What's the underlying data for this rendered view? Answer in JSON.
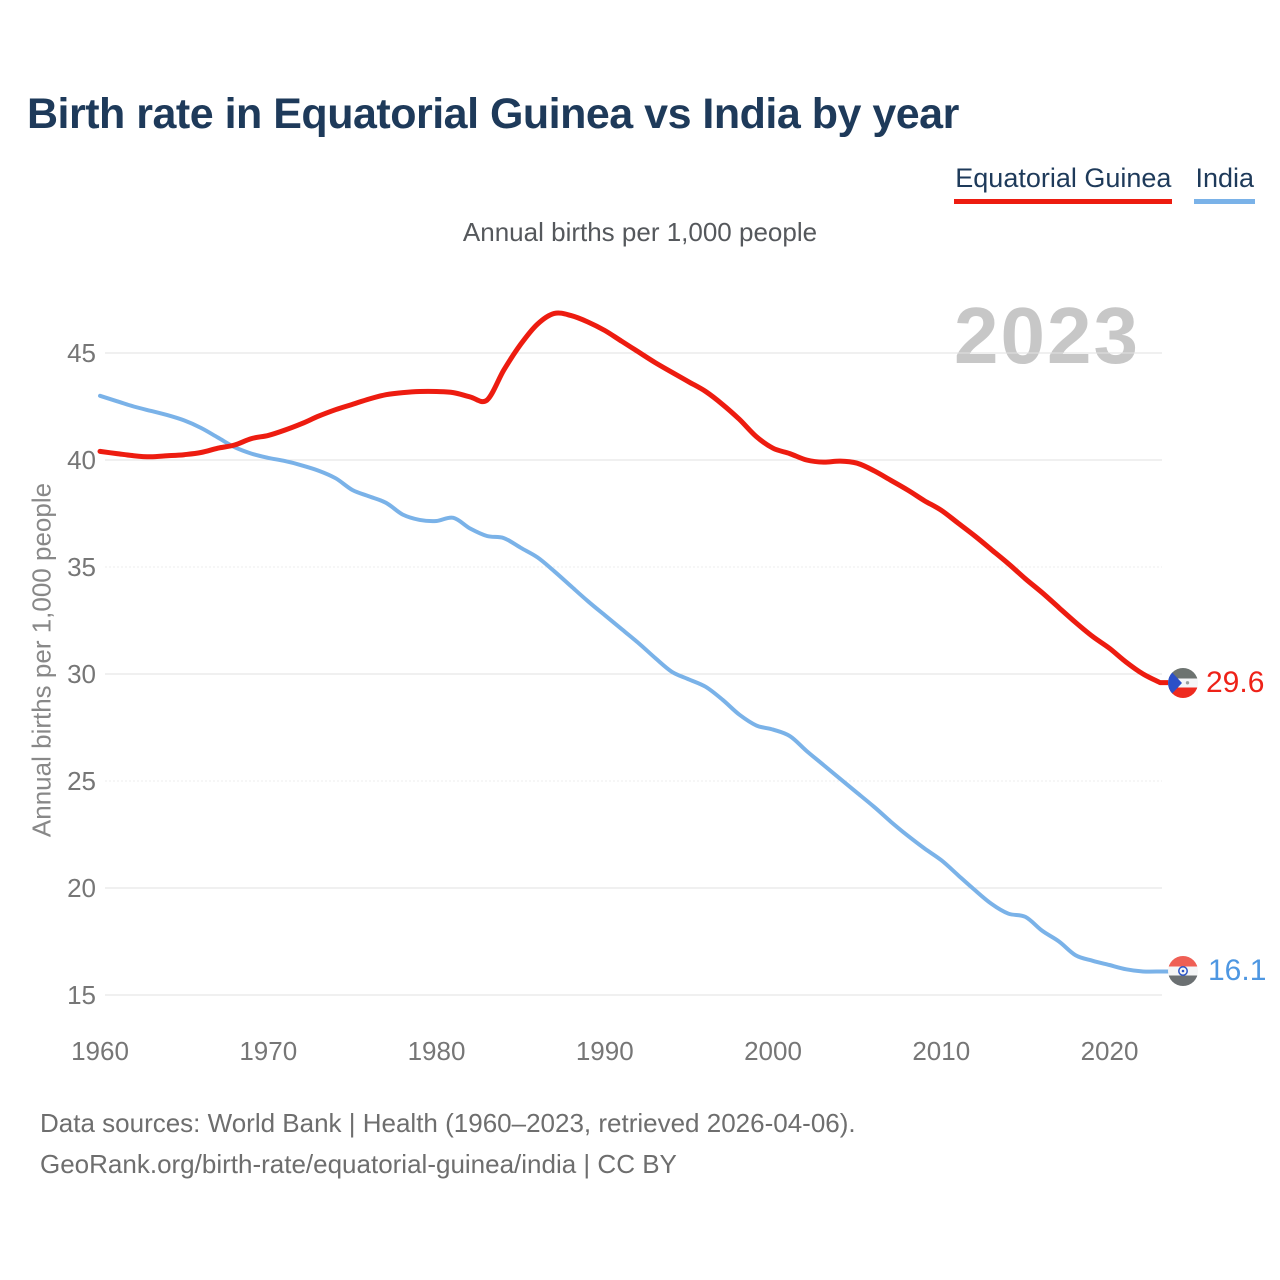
{
  "header": {
    "title": "Birth rate in Equatorial Guinea vs India by year"
  },
  "legend": {
    "items": [
      {
        "label": "Equatorial Guinea",
        "color": "#ed1c10"
      },
      {
        "label": "India",
        "color": "#7ab2e8"
      }
    ]
  },
  "chart": {
    "subtitle": "Annual births per 1,000 people",
    "watermark": "2023",
    "ylabel": "Annual births per 1,000 people"
  },
  "end_labels": {
    "equatorial_guinea": "29.6",
    "india": "16.1"
  },
  "footer": {
    "line1": "Data sources: World Bank | Health (1960–2023, retrieved 2026-04-06).",
    "line2": "GeoRank.org/birth-rate/equatorial-guinea/india | CC BY"
  },
  "chart_data": {
    "type": "line",
    "title": "Birth rate in Equatorial Guinea vs India by year",
    "ylabel": "Annual births per 1,000 people",
    "xlabel": "",
    "grid": "horizontal",
    "legend_position": "top-right",
    "xlim": [
      1960,
      2023
    ],
    "ylim": [
      13.8,
      48.2
    ],
    "xticks": [
      1960,
      1970,
      1980,
      1990,
      2000,
      2010,
      2020
    ],
    "yticks": [
      45,
      40,
      35,
      30,
      25,
      20,
      15
    ],
    "x": [
      1960,
      1961,
      1962,
      1963,
      1964,
      1965,
      1966,
      1967,
      1968,
      1969,
      1970,
      1971,
      1972,
      1973,
      1974,
      1975,
      1976,
      1977,
      1978,
      1979,
      1980,
      1981,
      1982,
      1983,
      1984,
      1985,
      1986,
      1987,
      1988,
      1989,
      1990,
      1991,
      1992,
      1993,
      1994,
      1995,
      1996,
      1997,
      1998,
      1999,
      2000,
      2001,
      2002,
      2003,
      2004,
      2005,
      2006,
      2007,
      2008,
      2009,
      2010,
      2011,
      2012,
      2013,
      2014,
      2015,
      2016,
      2017,
      2018,
      2019,
      2020,
      2021,
      2022,
      2023
    ],
    "series": [
      {
        "name": "Equatorial Guinea",
        "color": "#ed1c10",
        "end_label": "29.6",
        "values": [
          40.4,
          40.3,
          40.2,
          40.15,
          40.2,
          40.25,
          40.35,
          40.55,
          40.7,
          41.0,
          41.15,
          41.4,
          41.7,
          42.05,
          42.35,
          42.6,
          42.85,
          43.05,
          43.15,
          43.2,
          43.2,
          43.15,
          42.95,
          42.8,
          44.2,
          45.4,
          46.35,
          46.85,
          46.75,
          46.45,
          46.05,
          45.55,
          45.05,
          44.55,
          44.1,
          43.65,
          43.2,
          42.6,
          41.9,
          41.1,
          40.55,
          40.3,
          40.0,
          39.9,
          39.95,
          39.85,
          39.5,
          39.05,
          38.6,
          38.1,
          37.65,
          37.05,
          36.45,
          35.8,
          35.15,
          34.45,
          33.8,
          33.1,
          32.4,
          31.75,
          31.2,
          30.55,
          30.0,
          29.6
        ]
      },
      {
        "name": "India",
        "color": "#7ab2e8",
        "end_label": "16.1",
        "values": [
          43.0,
          42.75,
          42.5,
          42.3,
          42.1,
          41.85,
          41.5,
          41.05,
          40.6,
          40.3,
          40.1,
          39.95,
          39.75,
          39.5,
          39.15,
          38.6,
          38.3,
          38.0,
          37.45,
          37.2,
          37.15,
          37.3,
          36.8,
          36.45,
          36.35,
          35.9,
          35.45,
          34.8,
          34.1,
          33.4,
          32.75,
          32.1,
          31.45,
          30.75,
          30.1,
          29.75,
          29.4,
          28.8,
          28.1,
          27.6,
          27.4,
          27.1,
          26.4,
          25.75,
          25.1,
          24.45,
          23.8,
          23.1,
          22.45,
          21.85,
          21.3,
          20.6,
          19.9,
          19.25,
          18.8,
          18.65,
          18.0,
          17.5,
          16.85,
          16.6,
          16.4,
          16.2,
          16.1,
          16.1
        ]
      }
    ]
  }
}
